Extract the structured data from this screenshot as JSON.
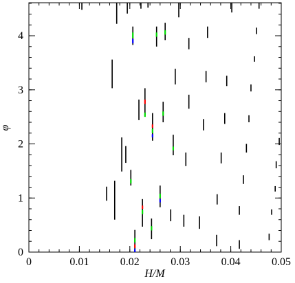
{
  "chart_data": {
    "type": "range",
    "xlabel": "H/M",
    "ylabel": "φ",
    "xlim": [
      0,
      0.05
    ],
    "ylim": [
      0,
      4.61
    ],
    "xticks": [
      0,
      0.01,
      0.02,
      0.03,
      0.04,
      0.05
    ],
    "yticks": [
      0,
      1,
      2,
      3,
      4
    ],
    "series": [
      {
        "color": "#000000",
        "x": [
          0.0105,
          0.0174,
          0.0195,
          0.0222,
          0.0236,
          0.0297,
          0.0402,
          0.0456,
          0.0206,
          0.0253,
          0.027,
          0.0354,
          0.0317,
          0.0451,
          0.0447,
          0.0165,
          0.029,
          0.0351,
          0.0392,
          0.044,
          0.023,
          0.0218,
          0.0266,
          0.0317,
          0.0388,
          0.0436,
          0.0346,
          0.0245,
          0.0184,
          0.0192,
          0.0286,
          0.0311,
          0.0381,
          0.0431,
          0.0496,
          0.049,
          0.0202,
          0.0154,
          0.017,
          0.026,
          0.0373,
          0.0425,
          0.0488,
          0.0225,
          0.0243,
          0.0281,
          0.0307,
          0.0338,
          0.0417,
          0.0481,
          0.021,
          0.0372,
          0.0417,
          0.0476
        ],
        "low": [
          4.48,
          4.22,
          4.41,
          4.5,
          4.52,
          4.34,
          4.43,
          4.5,
          3.83,
          3.8,
          3.92,
          3.96,
          3.75,
          4.03,
          3.52,
          3.03,
          3.1,
          3.14,
          3.07,
          2.97,
          2.53,
          2.44,
          2.4,
          2.65,
          2.37,
          2.4,
          2.25,
          2.06,
          1.49,
          1.65,
          1.79,
          1.59,
          1.64,
          1.84,
          1.98,
          1.55,
          1.23,
          0.95,
          0.6,
          0.83,
          0.88,
          1.26,
          1.12,
          0.47,
          0.24,
          0.57,
          0.47,
          0.43,
          0.69,
          0.69,
          0.0,
          0.11,
          0.06,
          0.22
        ],
        "high": [
          4.61,
          4.61,
          4.61,
          4.61,
          4.61,
          4.61,
          4.61,
          4.61,
          4.17,
          4.17,
          4.24,
          4.17,
          3.96,
          4.15,
          3.62,
          3.56,
          3.39,
          3.35,
          3.26,
          3.1,
          3.03,
          2.82,
          2.78,
          2.91,
          2.57,
          2.53,
          2.46,
          2.57,
          2.12,
          1.96,
          2.17,
          1.84,
          1.84,
          2.0,
          2.11,
          1.68,
          1.52,
          1.21,
          1.32,
          1.23,
          1.07,
          1.42,
          1.22,
          0.98,
          0.62,
          0.79,
          0.69,
          0.66,
          0.85,
          0.79,
          0.41,
          0.32,
          0.22,
          0.34
        ]
      },
      {
        "color": "#00dd00",
        "x": [
          0.0206,
          0.0253,
          0.027,
          0.023,
          0.0245,
          0.0266,
          0.0286,
          0.0202,
          0.026,
          0.0225,
          0.0243,
          0.021
        ],
        "low": [
          3.96,
          3.98,
          4.02,
          2.5,
          2.2,
          2.52,
          1.88,
          1.27,
          1.0,
          0.7,
          0.4,
          0.18
        ],
        "high": [
          4.06,
          4.06,
          4.1,
          2.58,
          2.28,
          2.6,
          1.95,
          1.35,
          1.08,
          0.78,
          0.48,
          0.26
        ]
      },
      {
        "color": "#ff0000",
        "x": [
          0.023,
          0.0245,
          0.0225,
          0.021
        ],
        "low": [
          2.74,
          2.3,
          0.8,
          0.08
        ],
        "high": [
          2.82,
          2.36,
          0.86,
          0.14
        ]
      },
      {
        "color": "#0000ff",
        "x": [
          0.0206,
          0.0245,
          0.026,
          0.021
        ],
        "low": [
          3.86,
          2.12,
          0.92,
          0.0
        ],
        "high": [
          3.94,
          2.18,
          0.98,
          0.06
        ]
      }
    ]
  }
}
